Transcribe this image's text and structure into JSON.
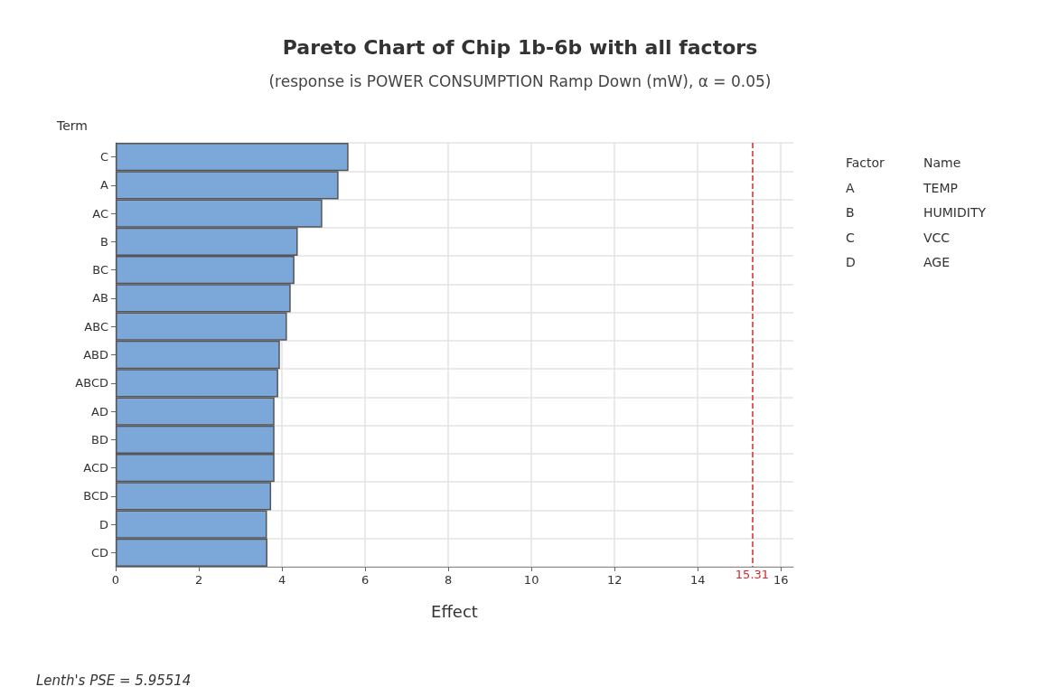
{
  "chart_data": {
    "type": "bar",
    "orientation": "horizontal",
    "title": "Pareto Chart of Chip 1b-6b with all factors",
    "subtitle": "(response is POWER CONSUMPTION Ramp Down (mW), α = 0.05)",
    "xlabel": "Effect",
    "ylabel": "Term",
    "categories": [
      "C",
      "A",
      "AC",
      "B",
      "BC",
      "AB",
      "ABC",
      "ABD",
      "ABCD",
      "AD",
      "BD",
      "ACD",
      "BCD",
      "D",
      "CD"
    ],
    "values": [
      5.6,
      5.36,
      4.97,
      4.38,
      4.3,
      4.21,
      4.12,
      3.95,
      3.91,
      3.82,
      3.82,
      3.82,
      3.74,
      3.64,
      3.65
    ],
    "color": "#7ba7d9",
    "xlim": [
      0,
      16.3
    ],
    "xticks": [
      0,
      2,
      4,
      6,
      8,
      10,
      12,
      14,
      16
    ],
    "grid": true,
    "ref_lines": [
      {
        "axis": "x",
        "value": 15.31,
        "label": "15.31",
        "color": "#d62728",
        "line_style": "dashed"
      }
    ],
    "annotations": [
      "Factor",
      "Name",
      "A",
      "TEMP",
      "B",
      "HUMIDITY",
      "C",
      "VCC",
      "D",
      "AGE",
      "Lenth's PSE = 5.95514"
    ]
  }
}
